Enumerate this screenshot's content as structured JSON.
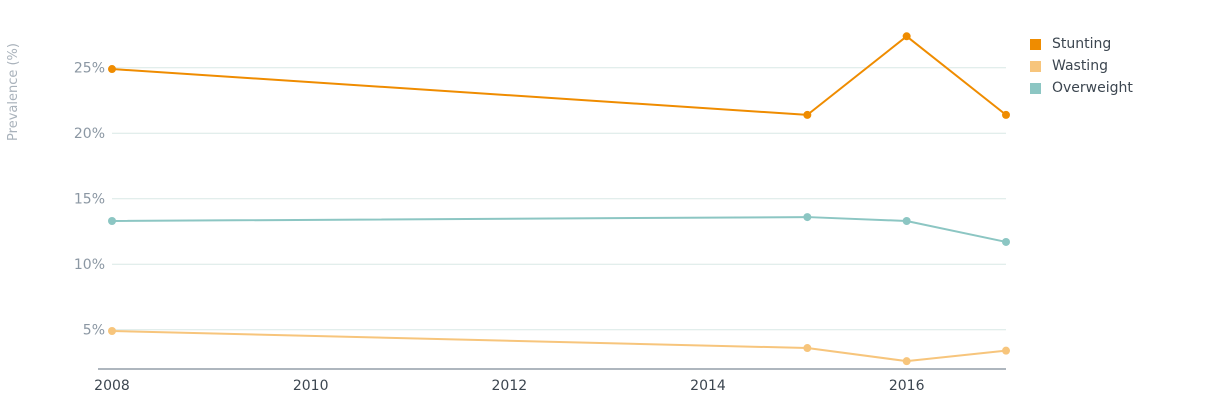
{
  "chart_data": {
    "type": "line",
    "title": "",
    "xlabel": "",
    "ylabel": "Prevalence (%)",
    "xlim": [
      2008,
      2017
    ],
    "ylim": [
      2.0,
      27.5
    ],
    "y_ticks": [
      5,
      10,
      15,
      20,
      25
    ],
    "y_tick_labels": [
      "5%",
      "10%",
      "15%",
      "20%",
      "25%"
    ],
    "x_ticks": [
      2008,
      2010,
      2012,
      2014,
      2016
    ],
    "x_tick_labels": [
      "2008",
      "2010",
      "2012",
      "2014",
      "2016"
    ],
    "grid": "horizontal",
    "legend_position": "top-right",
    "series": [
      {
        "name": "Stunting",
        "color": "#ef8c00",
        "x": [
          2008,
          2015,
          2016,
          2017
        ],
        "y": [
          24.9,
          21.4,
          27.4,
          21.4
        ]
      },
      {
        "name": "Wasting",
        "color": "#f7c57c",
        "x": [
          2008,
          2015,
          2016,
          2017
        ],
        "y": [
          4.9,
          3.6,
          2.6,
          3.4
        ]
      },
      {
        "name": "Overweight",
        "color": "#8cc6c3",
        "x": [
          2008,
          2015,
          2016,
          2017
        ],
        "y": [
          13.3,
          13.6,
          13.3,
          11.7
        ]
      }
    ]
  },
  "colors": {
    "grid": "#d9e8e5",
    "axis": "#7d8b96"
  }
}
